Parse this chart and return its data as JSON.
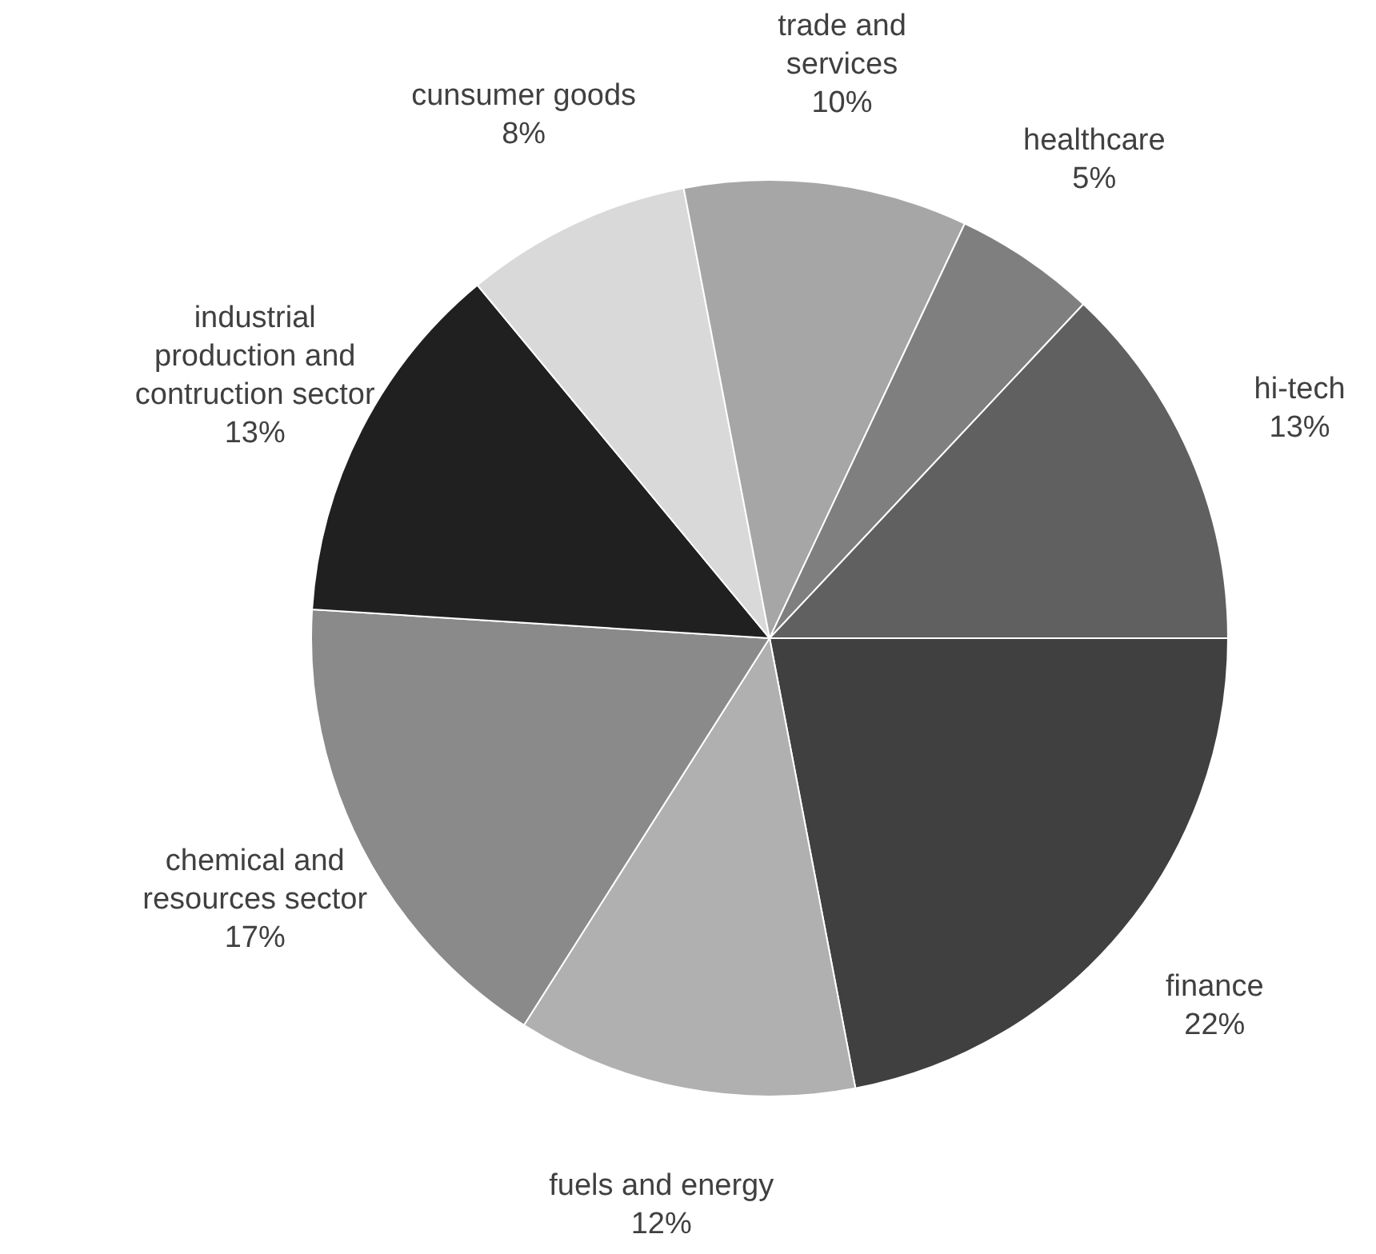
{
  "chart_data": {
    "type": "pie",
    "categories": [
      "finance",
      "fuels and energy",
      "chemical and resources sector",
      "industrial production and contruction sector",
      "cunsumer goods",
      "trade and services",
      "healthcare",
      "hi-tech"
    ],
    "values": [
      22,
      12,
      17,
      13,
      8,
      10,
      5,
      13
    ],
    "value_labels": [
      "22%",
      "12%",
      "17%",
      "13%",
      "8%",
      "10%",
      "5%",
      "13%"
    ],
    "colors": [
      "#404040",
      "#b0b0b0",
      "#8a8a8a",
      "#202020",
      "#d9d9d9",
      "#a6a6a6",
      "#7f7f7f",
      "#606060"
    ],
    "legend": false
  }
}
